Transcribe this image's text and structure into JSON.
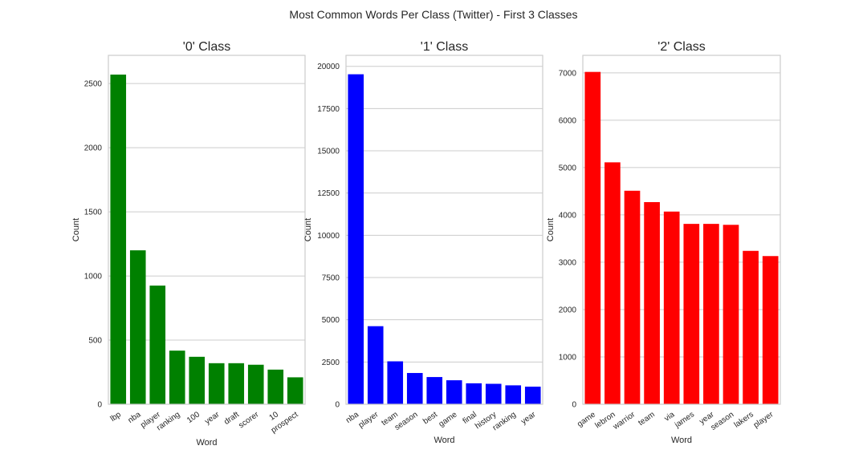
{
  "figure": {
    "suptitle": "Most Common Words Per Class (Twitter) - First 3 Classes"
  },
  "chart_data": [
    {
      "type": "bar",
      "title": "'0' Class",
      "xlabel": "Word",
      "ylabel": "Count",
      "ylim": [
        0,
        2720
      ],
      "yticks": [
        0,
        500,
        1000,
        1500,
        2000,
        2500
      ],
      "color": "#008000",
      "grid": true,
      "categories": [
        "lbp",
        "nba",
        "player",
        "ranking",
        "100",
        "year",
        "draft",
        "scorer",
        "10",
        "prospect"
      ],
      "values": [
        2570,
        1200,
        925,
        418,
        370,
        320,
        320,
        308,
        270,
        210
      ]
    },
    {
      "type": "bar",
      "title": "'1' Class",
      "xlabel": "Word",
      "ylabel": "Count",
      "ylim": [
        0,
        20650
      ],
      "yticks": [
        0,
        2500,
        5000,
        7500,
        10000,
        12500,
        15000,
        17500,
        20000
      ],
      "color": "#0000ff",
      "grid": true,
      "categories": [
        "nba",
        "player",
        "team",
        "season",
        "best",
        "game",
        "final",
        "history",
        "ranking",
        "year"
      ],
      "values": [
        19530,
        4620,
        2540,
        1850,
        1610,
        1420,
        1240,
        1210,
        1120,
        1040
      ]
    },
    {
      "type": "bar",
      "title": "'2' Class",
      "xlabel": "Word",
      "ylabel": "Count",
      "ylim": [
        0,
        7370
      ],
      "yticks": [
        0,
        1000,
        2000,
        3000,
        4000,
        5000,
        6000,
        7000
      ],
      "color": "#ff0000",
      "grid": true,
      "categories": [
        "game",
        "lebron",
        "warrior",
        "team",
        "via",
        "james",
        "year",
        "season",
        "lakers",
        "player"
      ],
      "values": [
        7020,
        5110,
        4510,
        4270,
        4070,
        3810,
        3810,
        3790,
        3240,
        3130
      ]
    }
  ]
}
